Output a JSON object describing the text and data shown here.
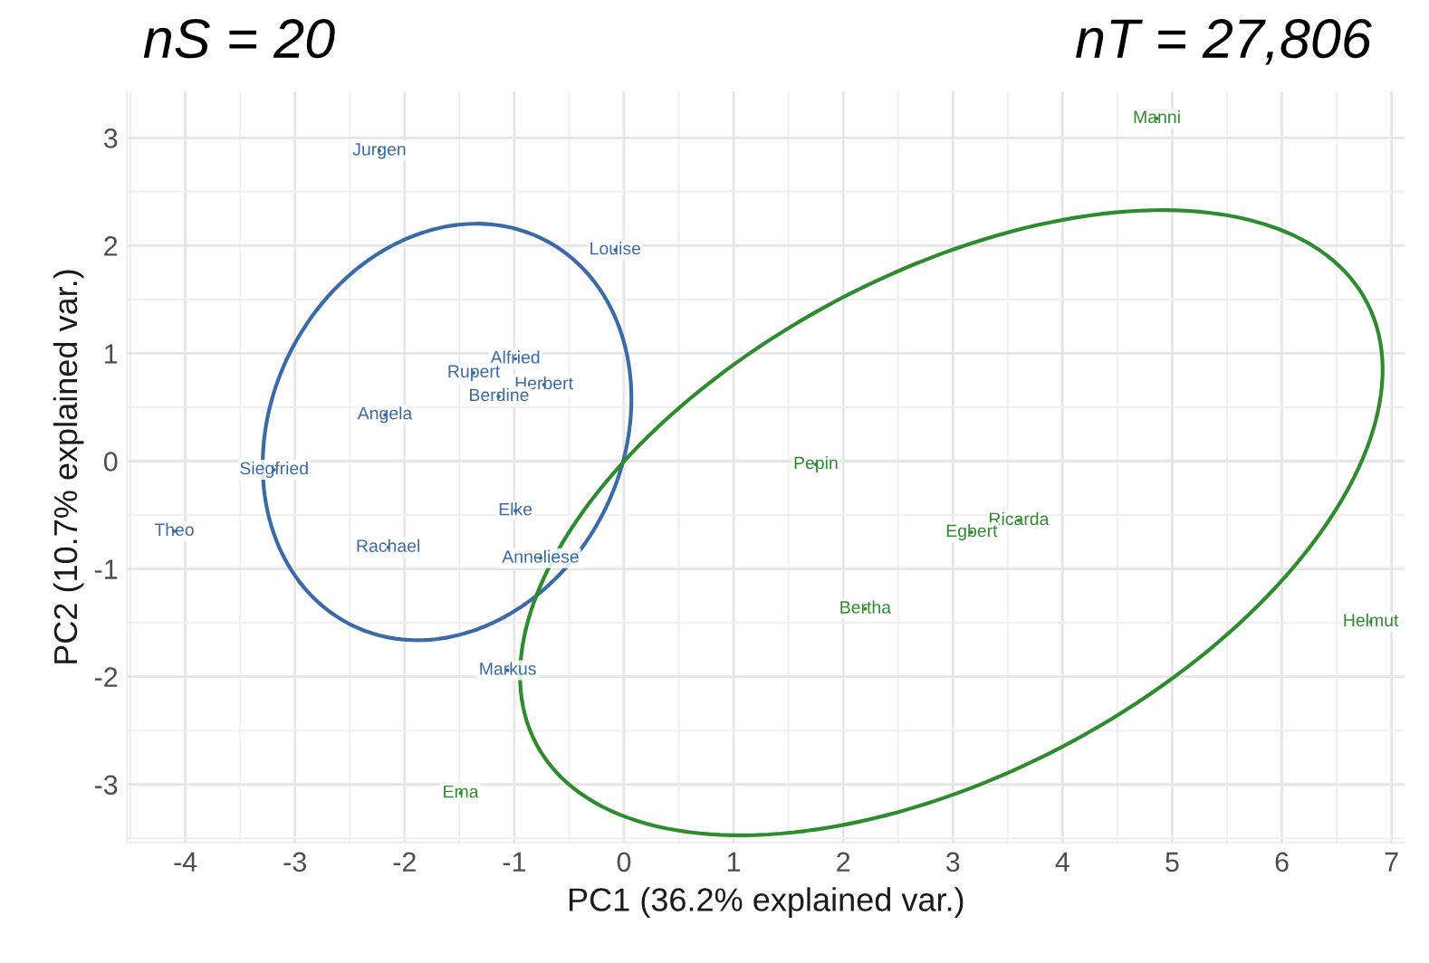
{
  "chart_data": {
    "type": "scatter",
    "xlabel": "PC1 (36.2% explained var.)",
    "ylabel": "PC2 (10.7% explained var.)",
    "annotations": [
      "nS = 20",
      "nT = 27,806"
    ],
    "xlim": [
      -4.53,
      7.12
    ],
    "ylim": [
      -3.54,
      3.43
    ],
    "xticks": [
      -4,
      -3,
      -2,
      -1,
      0,
      1,
      2,
      3,
      4,
      5,
      6,
      7
    ],
    "yticks": [
      -3,
      -2,
      -1,
      0,
      1,
      2,
      3
    ],
    "grid": true,
    "legend": false,
    "series": [
      {
        "color": "#3a6aa8",
        "x": [
          -2.23,
          -0.08,
          -0.99,
          -1.37,
          -0.73,
          -1.14,
          -2.18,
          -3.19,
          -4.1,
          -2.15,
          -0.99,
          -0.76,
          -1.06
        ],
        "values": [
          2.88,
          1.96,
          0.95,
          0.82,
          0.71,
          0.6,
          0.43,
          -0.08,
          -0.65,
          -0.8,
          -0.46,
          -0.9,
          -1.94
        ],
        "value_labels": [
          "Jurgen",
          "Louise",
          "Alfried",
          "Rupert",
          "Herbert",
          "Berdine",
          "Angela",
          "Siegfried",
          "Theo",
          "Rachael",
          "Elke",
          "Anneliese",
          "Markus"
        ]
      },
      {
        "color": "#2e8b2e",
        "x": [
          -1.49,
          4.86,
          1.75,
          3.6,
          3.17,
          2.2,
          6.81
        ],
        "values": [
          -3.08,
          3.18,
          -0.03,
          -0.55,
          -0.66,
          -1.37,
          -1.49
        ],
        "value_labels": [
          "Ema",
          "Manni",
          "Pepin",
          "Ricarda",
          "Egbert",
          "Bertha",
          "Helmut"
        ]
      }
    ]
  }
}
